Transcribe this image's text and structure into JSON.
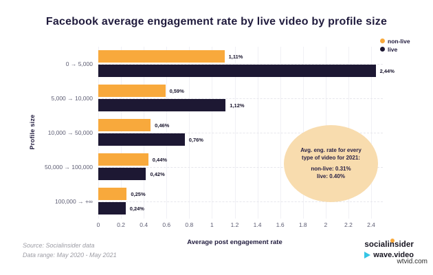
{
  "title": "Facebook average engagement rate by live video by profile size",
  "colors": {
    "non_live": "#f8a93c",
    "live": "#1d1833",
    "annotation_bg": "#f8dcae",
    "grid": "#f0f0f5",
    "dashed_grid": "#e6e6ec",
    "title_text": "#201b3d"
  },
  "legend": {
    "items": [
      {
        "label": "non-live",
        "color": "#f8a93c"
      },
      {
        "label": "live",
        "color": "#1d1833"
      }
    ]
  },
  "chart_data": {
    "type": "bar",
    "orientation": "horizontal",
    "categories": [
      "0 → 5,000",
      "5,000 → 10,000",
      "10,000 → 50,000",
      "50,000 → 100,000",
      "100,000 → +∞"
    ],
    "series": [
      {
        "name": "non-live",
        "color": "#f8a93c",
        "values": [
          1.11,
          0.59,
          0.46,
          0.44,
          0.25
        ],
        "labels": [
          "1,11%",
          "0,59%",
          "0,46%",
          "0,44%",
          "0,25%"
        ]
      },
      {
        "name": "live",
        "color": "#1d1833",
        "values": [
          2.44,
          1.12,
          0.76,
          0.42,
          0.24
        ],
        "labels": [
          "2,44%",
          "1,12%",
          "0,76%",
          "0,42%",
          "0,24%"
        ]
      }
    ],
    "xlabel": "Average post engagement rate",
    "ylabel": "Profile size",
    "xlim": [
      0,
      2.4
    ],
    "xticks": [
      0,
      0.2,
      0.4,
      0.6,
      0.8,
      1,
      1.2,
      1.4,
      1.6,
      1.8,
      2,
      2.2,
      2.4
    ],
    "xtick_labels": [
      "0",
      "0.2",
      "0.4",
      "0.6",
      "0.8",
      "1",
      "1.2",
      "1.4",
      "1.6",
      "1.8",
      "2",
      "2.2",
      "2.4"
    ],
    "grid": "vertical solid + horizontal dashed at category centers",
    "legend_position": "top-right"
  },
  "annotation": {
    "line1": "Avg. eng. rate for every",
    "line2": "type of video for 2021:",
    "line3": "non-live: 0.31%",
    "line4": "live: 0.40%"
  },
  "footer": {
    "source_line1": "Source: Socialinsider data",
    "source_line2": "Data range: May 2020 - May 2021",
    "brand1": "socialinsider",
    "brand2": "wave.video",
    "watermark": "wtvid.com"
  }
}
